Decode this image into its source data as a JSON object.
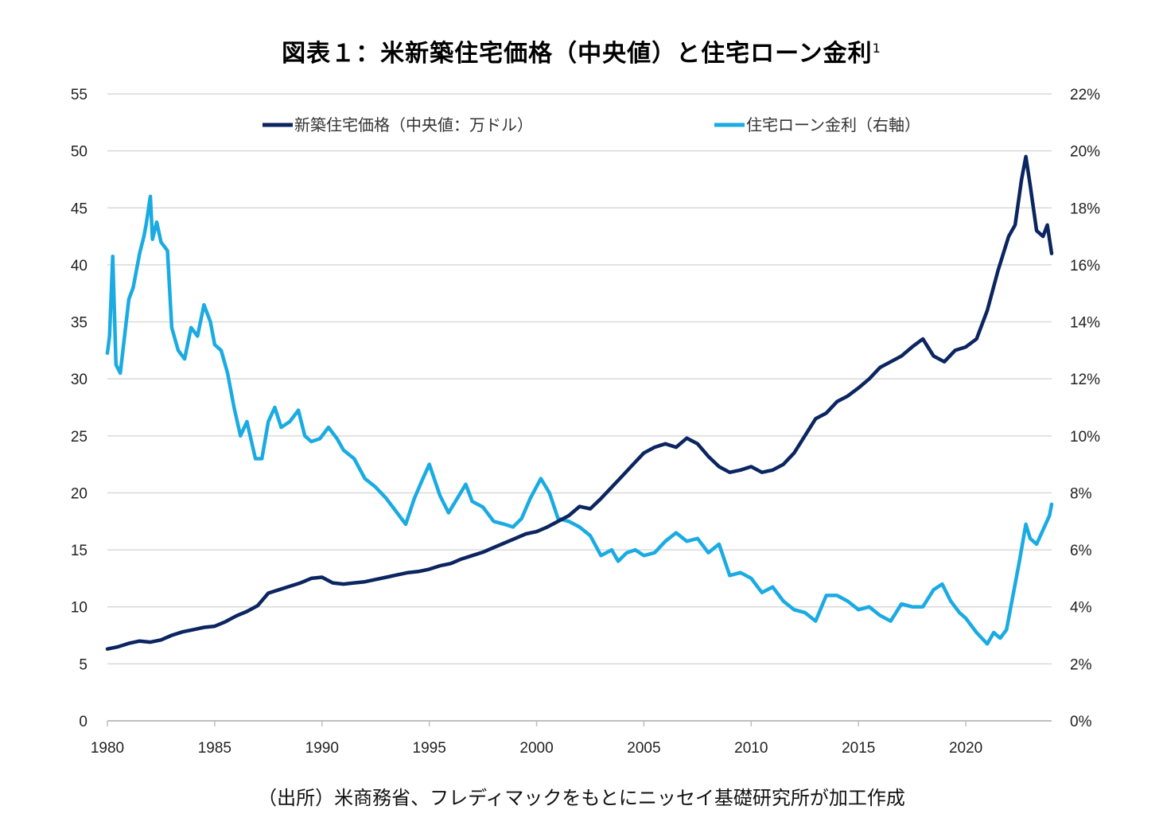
{
  "title": "図表１：米新築住宅価格（中央値）と住宅ローン金利",
  "title_footnote": "1",
  "source": "（出所）米商務省、フレディマックをもとにニッセイ基礎研究所が加工作成",
  "colors": {
    "price": "#0b2560",
    "rate": "#1aabe2",
    "grid": "#d9d9d9",
    "axis": "#bfbfbf"
  },
  "chart_data": {
    "type": "line",
    "title": "図表１：米新築住宅価格（中央値）と住宅ローン金利",
    "xlabel": "",
    "ylabel_left": "",
    "ylabel_right": "",
    "x_range": [
      1980,
      2024
    ],
    "x_ticks": [
      "1980",
      "1985",
      "1990",
      "1995",
      "2000",
      "2005",
      "2010",
      "2015",
      "2020"
    ],
    "y_left": {
      "range": [
        0,
        55
      ],
      "ticks": [
        "0",
        "5",
        "10",
        "15",
        "20",
        "25",
        "30",
        "35",
        "40",
        "45",
        "50",
        "55"
      ]
    },
    "y_right": {
      "range": [
        0,
        22
      ],
      "ticks": [
        "0%",
        "2%",
        "4%",
        "6%",
        "8%",
        "10%",
        "12%",
        "14%",
        "16%",
        "18%",
        "20%",
        "22%"
      ]
    },
    "grid": true,
    "legend": {
      "placement": "top",
      "entries": [
        "新築住宅価格（中央値：万ドル）",
        "住宅ローン金利（右軸）"
      ]
    },
    "series": [
      {
        "name": "新築住宅価格（中央値：万ドル）",
        "axis": "left",
        "x": [
          1980.0,
          1980.5,
          1981.0,
          1981.5,
          1982.0,
          1982.5,
          1983.0,
          1983.5,
          1984.0,
          1984.5,
          1985.0,
          1985.5,
          1986.0,
          1986.5,
          1987.0,
          1987.5,
          1988.0,
          1988.5,
          1989.0,
          1989.5,
          1990.0,
          1990.5,
          1991.0,
          1991.5,
          1992.0,
          1992.5,
          1993.0,
          1993.5,
          1994.0,
          1994.5,
          1995.0,
          1995.5,
          1996.0,
          1996.5,
          1997.0,
          1997.5,
          1998.0,
          1998.5,
          1999.0,
          1999.5,
          2000.0,
          2000.5,
          2001.0,
          2001.5,
          2002.0,
          2002.5,
          2003.0,
          2003.5,
          2004.0,
          2004.5,
          2005.0,
          2005.5,
          2006.0,
          2006.5,
          2007.0,
          2007.5,
          2008.0,
          2008.5,
          2009.0,
          2009.5,
          2010.0,
          2010.5,
          2011.0,
          2011.5,
          2012.0,
          2012.5,
          2013.0,
          2013.5,
          2014.0,
          2014.5,
          2015.0,
          2015.5,
          2016.0,
          2016.5,
          2017.0,
          2017.5,
          2018.0,
          2018.5,
          2019.0,
          2019.5,
          2020.0,
          2020.5,
          2021.0,
          2021.5,
          2022.0,
          2022.3,
          2022.6,
          2022.8,
          2023.0,
          2023.3,
          2023.6,
          2023.8,
          2024.0
        ],
        "values": [
          6.3,
          6.5,
          6.8,
          7.0,
          6.9,
          7.1,
          7.5,
          7.8,
          8.0,
          8.2,
          8.3,
          8.7,
          9.2,
          9.6,
          10.1,
          11.2,
          11.5,
          11.8,
          12.1,
          12.5,
          12.6,
          12.1,
          12.0,
          12.1,
          12.2,
          12.4,
          12.6,
          12.8,
          13.0,
          13.1,
          13.3,
          13.6,
          13.8,
          14.2,
          14.5,
          14.8,
          15.2,
          15.6,
          16.0,
          16.4,
          16.6,
          17.0,
          17.5,
          18.0,
          18.8,
          18.6,
          19.5,
          20.5,
          21.5,
          22.5,
          23.5,
          24.0,
          24.3,
          24.0,
          24.8,
          24.3,
          23.2,
          22.3,
          21.8,
          22.0,
          22.3,
          21.8,
          22.0,
          22.5,
          23.5,
          25.0,
          26.5,
          27.0,
          28.0,
          28.5,
          29.2,
          30.0,
          31.0,
          31.5,
          32.0,
          32.8,
          33.5,
          32.0,
          31.5,
          32.5,
          32.8,
          33.5,
          36.0,
          39.5,
          42.5,
          43.5,
          47.5,
          49.5,
          47.0,
          43.0,
          42.5,
          43.5,
          41.0
        ]
      },
      {
        "name": "住宅ローン金利（右軸）",
        "axis": "right",
        "x": [
          1980.0,
          1980.1,
          1980.25,
          1980.4,
          1980.6,
          1980.8,
          1981.0,
          1981.2,
          1981.5,
          1981.7,
          1981.8,
          1982.0,
          1982.1,
          1982.3,
          1982.5,
          1982.8,
          1983.0,
          1983.3,
          1983.6,
          1983.9,
          1984.2,
          1984.5,
          1984.8,
          1985.0,
          1985.3,
          1985.6,
          1985.9,
          1986.2,
          1986.5,
          1986.9,
          1987.2,
          1987.5,
          1987.8,
          1988.1,
          1988.5,
          1988.9,
          1989.2,
          1989.5,
          1989.9,
          1990.3,
          1990.7,
          1991.0,
          1991.5,
          1992.0,
          1992.5,
          1993.0,
          1993.5,
          1993.9,
          1994.3,
          1994.7,
          1995.0,
          1995.5,
          1995.9,
          1996.3,
          1996.7,
          1997.0,
          1997.5,
          1998.0,
          1998.5,
          1998.9,
          1999.3,
          1999.7,
          2000.2,
          2000.6,
          2001.0,
          2001.5,
          2002.0,
          2002.5,
          2003.0,
          2003.5,
          2003.8,
          2004.2,
          2004.6,
          2005.0,
          2005.5,
          2006.0,
          2006.5,
          2007.0,
          2007.5,
          2008.0,
          2008.5,
          2009.0,
          2009.5,
          2010.0,
          2010.5,
          2011.0,
          2011.5,
          2012.0,
          2012.5,
          2013.0,
          2013.5,
          2014.0,
          2014.5,
          2015.0,
          2015.5,
          2016.0,
          2016.5,
          2017.0,
          2017.5,
          2018.0,
          2018.5,
          2018.9,
          2019.3,
          2019.7,
          2020.0,
          2020.5,
          2021.0,
          2021.3,
          2021.6,
          2021.9,
          2022.2,
          2022.5,
          2022.8,
          2023.0,
          2023.3,
          2023.6,
          2023.9,
          2024.0
        ],
        "values": [
          12.9,
          13.5,
          16.3,
          12.5,
          12.2,
          13.5,
          14.8,
          15.2,
          16.4,
          17.0,
          17.4,
          18.4,
          16.9,
          17.5,
          16.8,
          16.5,
          13.8,
          13.0,
          12.7,
          13.8,
          13.5,
          14.6,
          14.0,
          13.2,
          13.0,
          12.2,
          11.0,
          10.0,
          10.5,
          9.2,
          9.2,
          10.5,
          11.0,
          10.3,
          10.5,
          10.9,
          10.0,
          9.8,
          9.9,
          10.3,
          9.9,
          9.5,
          9.2,
          8.5,
          8.2,
          7.8,
          7.3,
          6.9,
          7.8,
          8.5,
          9.0,
          7.9,
          7.3,
          7.8,
          8.3,
          7.7,
          7.5,
          7.0,
          6.9,
          6.8,
          7.1,
          7.8,
          8.5,
          8.0,
          7.1,
          7.0,
          6.8,
          6.5,
          5.8,
          6.0,
          5.6,
          5.9,
          6.0,
          5.8,
          5.9,
          6.3,
          6.6,
          6.3,
          6.4,
          5.9,
          6.2,
          5.1,
          5.2,
          5.0,
          4.5,
          4.7,
          4.2,
          3.9,
          3.8,
          3.5,
          4.4,
          4.4,
          4.2,
          3.9,
          4.0,
          3.7,
          3.5,
          4.1,
          4.0,
          4.0,
          4.6,
          4.8,
          4.2,
          3.8,
          3.6,
          3.1,
          2.7,
          3.1,
          2.9,
          3.2,
          4.4,
          5.6,
          6.9,
          6.4,
          6.2,
          6.7,
          7.2,
          7.6
        ]
      }
    ]
  }
}
